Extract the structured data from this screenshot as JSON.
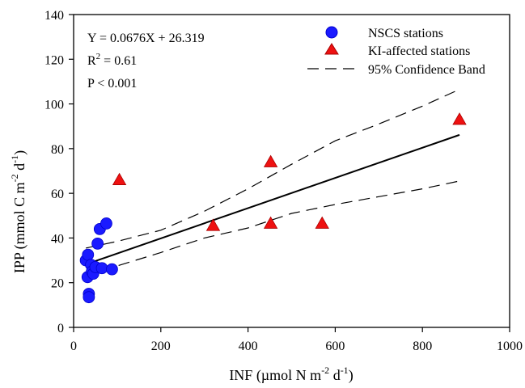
{
  "colors": {
    "nscs": "#1a1aff",
    "nscs_stroke": "#0000cc",
    "ki": "#ee1111",
    "ki_stroke": "#aa0000",
    "axis": "#000000",
    "fit_line": "#000000",
    "band_line": "#000000"
  },
  "chart_data": {
    "type": "scatter",
    "title": "",
    "xlabel": {
      "main": "INF (µmol N m",
      "sup1": "-2",
      "mid": " d",
      "sup2": "-1",
      "end": ")"
    },
    "ylabel": {
      "main": "IPP (mmol C m",
      "sup1": "-2",
      "mid": " d",
      "sup2": "-1",
      "end": ")"
    },
    "xlim": [
      0,
      1000
    ],
    "ylim": [
      0,
      140
    ],
    "xticks": [
      0,
      200,
      400,
      600,
      800,
      1000
    ],
    "yticks": [
      0,
      20,
      40,
      60,
      80,
      100,
      120,
      140
    ],
    "grid": false,
    "legend_position": "top-right",
    "legend": [
      {
        "label": "NSCS stations",
        "marker": "circle"
      },
      {
        "label": "KI-affected stations",
        "marker": "triangle"
      },
      {
        "label": "95% Confidence Band",
        "marker": "dashed-line"
      }
    ],
    "annotations": {
      "equation": "Y =  0.0676X + 26.319",
      "r2_prefix": "R",
      "r2_sup": "2",
      "r2_suffix": " = 0.61",
      "p_value": "P < 0.001"
    },
    "series": [
      {
        "name": "NSCS stations",
        "marker": "circle",
        "points": [
          [
            28,
            30
          ],
          [
            32,
            22.5
          ],
          [
            33,
            32.5
          ],
          [
            35,
            15
          ],
          [
            35,
            13.5
          ],
          [
            40,
            28
          ],
          [
            42,
            25
          ],
          [
            45,
            24
          ],
          [
            50,
            27
          ],
          [
            55,
            37.5
          ],
          [
            60,
            44
          ],
          [
            65,
            26.5
          ],
          [
            75,
            46.5
          ],
          [
            88,
            26
          ]
        ]
      },
      {
        "name": "KI-affected stations",
        "marker": "triangle",
        "points": [
          [
            105,
            66
          ],
          [
            320,
            45.5
          ],
          [
            452,
            74
          ],
          [
            452,
            46.5
          ],
          [
            570,
            46.5
          ],
          [
            885,
            93
          ]
        ]
      }
    ],
    "regression": {
      "slope": 0.0676,
      "intercept": 26.319,
      "x_range": [
        28,
        885
      ]
    },
    "confidence_band": {
      "upper": [
        [
          28,
          35.5
        ],
        [
          100,
          38.5
        ],
        [
          200,
          43.5
        ],
        [
          300,
          52
        ],
        [
          400,
          62
        ],
        [
          500,
          73
        ],
        [
          600,
          83.5
        ],
        [
          700,
          91
        ],
        [
          800,
          99
        ],
        [
          885,
          106.5
        ]
      ],
      "lower": [
        [
          28,
          21.5
        ],
        [
          100,
          27.5
        ],
        [
          200,
          33.5
        ],
        [
          300,
          40
        ],
        [
          400,
          44.5
        ],
        [
          500,
          51
        ],
        [
          600,
          55
        ],
        [
          700,
          58.5
        ],
        [
          800,
          62
        ],
        [
          885,
          65.5
        ]
      ]
    }
  }
}
